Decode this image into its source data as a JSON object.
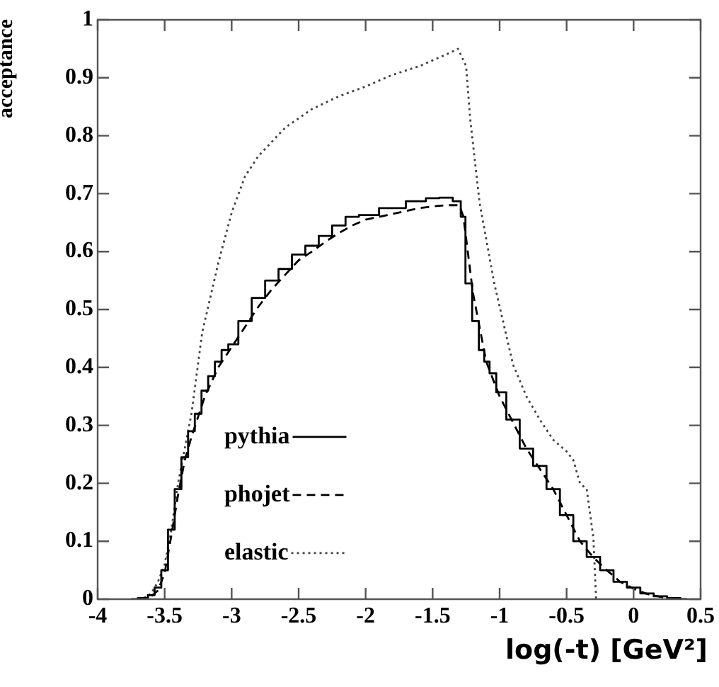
{
  "chart_data": {
    "type": "line",
    "xlabel": "log(-t)  [GeV²]",
    "ylabel": "acceptance",
    "xlim": [
      -4,
      0.5
    ],
    "ylim": [
      0,
      1
    ],
    "xticks": [
      -4,
      -3.5,
      -3,
      -2.5,
      -2,
      -1.5,
      -1,
      -0.5,
      0,
      0.5
    ],
    "yticks": [
      0,
      0.1,
      0.2,
      0.3,
      0.4,
      0.5,
      0.6,
      0.7,
      0.8,
      0.9,
      1
    ],
    "grid": false,
    "legend": "bottom left",
    "marker": "none",
    "series": [
      {
        "name": "pythia",
        "type": "step",
        "line_style": "solid",
        "color": "#000000",
        "x": [
          -3.75,
          -3.65,
          -3.6,
          -3.55,
          -3.5,
          -3.45,
          -3.4,
          -3.35,
          -3.3,
          -3.25,
          -3.2,
          -3.15,
          -3.1,
          -3.05,
          -3,
          -2.9,
          -2.8,
          -2.7,
          -2.6,
          -2.5,
          -2.4,
          -2.3,
          -2.2,
          -2.1,
          -2,
          -1.8,
          -1.6,
          -1.5,
          -1.4,
          -1.3,
          -1.28,
          -1.23,
          -1.18,
          -1.13,
          -1.1,
          -1.05,
          -1,
          -0.9,
          -0.8,
          -0.7,
          -0.6,
          -0.5,
          -0.4,
          -0.3,
          -0.2,
          -0.1,
          0,
          0.1,
          0.2,
          0.3,
          0.4
        ],
        "values": [
          0,
          0.002,
          0.007,
          0.02,
          0.05,
          0.12,
          0.19,
          0.245,
          0.29,
          0.32,
          0.36,
          0.385,
          0.41,
          0.43,
          0.44,
          0.48,
          0.52,
          0.55,
          0.57,
          0.595,
          0.61,
          0.627,
          0.645,
          0.66,
          0.663,
          0.675,
          0.687,
          0.692,
          0.693,
          0.687,
          0.66,
          0.545,
          0.48,
          0.43,
          0.41,
          0.39,
          0.357,
          0.31,
          0.26,
          0.23,
          0.19,
          0.145,
          0.1,
          0.073,
          0.05,
          0.03,
          0.02,
          0.01,
          0.005,
          0.002,
          0
        ]
      },
      {
        "name": "phojet",
        "type": "line",
        "line_style": "dashed",
        "color": "#000000",
        "x": [
          -3.7,
          -3.6,
          -3.55,
          -3.5,
          -3.45,
          -3.4,
          -3.35,
          -3.3,
          -3.2,
          -3.1,
          -3,
          -2.9,
          -2.8,
          -2.7,
          -2.6,
          -2.5,
          -2.4,
          -2.3,
          -2.2,
          -2.1,
          -2,
          -1.8,
          -1.6,
          -1.5,
          -1.4,
          -1.3,
          -1.27,
          -1.2,
          -1.15,
          -1.1,
          -1,
          -0.9,
          -0.8,
          -0.7,
          -0.6,
          -0.5,
          -0.4,
          -0.3,
          -0.2,
          -0.1,
          0,
          0.1,
          0.2,
          0.3
        ],
        "values": [
          0,
          0.005,
          0.015,
          0.045,
          0.11,
          0.18,
          0.24,
          0.28,
          0.35,
          0.4,
          0.435,
          0.47,
          0.505,
          0.535,
          0.56,
          0.585,
          0.6,
          0.617,
          0.632,
          0.645,
          0.655,
          0.665,
          0.675,
          0.678,
          0.68,
          0.68,
          0.66,
          0.53,
          0.47,
          0.41,
          0.35,
          0.305,
          0.26,
          0.225,
          0.19,
          0.145,
          0.1,
          0.072,
          0.05,
          0.03,
          0.018,
          0.009,
          0.004,
          0
        ]
      },
      {
        "name": "elastic",
        "type": "line",
        "line_style": "dotted",
        "color": "#444444",
        "x": [
          -3.65,
          -3.6,
          -3.55,
          -3.5,
          -3.45,
          -3.4,
          -3.35,
          -3.3,
          -3.22,
          -3.1,
          -3,
          -2.9,
          -2.8,
          -2.6,
          -2.4,
          -2.2,
          -2,
          -1.8,
          -1.6,
          -1.4,
          -1.31,
          -1.25,
          -1.22,
          -1.15,
          -1.04,
          -0.9,
          -0.8,
          -0.7,
          -0.6,
          -0.5,
          -0.45,
          -0.4,
          -0.35,
          -0.3,
          -0.28
        ],
        "values": [
          0,
          0.01,
          0.03,
          0.06,
          0.12,
          0.2,
          0.26,
          0.32,
          0.46,
          0.58,
          0.667,
          0.73,
          0.765,
          0.814,
          0.846,
          0.868,
          0.885,
          0.905,
          0.92,
          0.94,
          0.95,
          0.92,
          0.83,
          0.685,
          0.545,
          0.405,
          0.35,
          0.31,
          0.275,
          0.255,
          0.24,
          0.2,
          0.19,
          0.105,
          0
        ]
      }
    ]
  }
}
